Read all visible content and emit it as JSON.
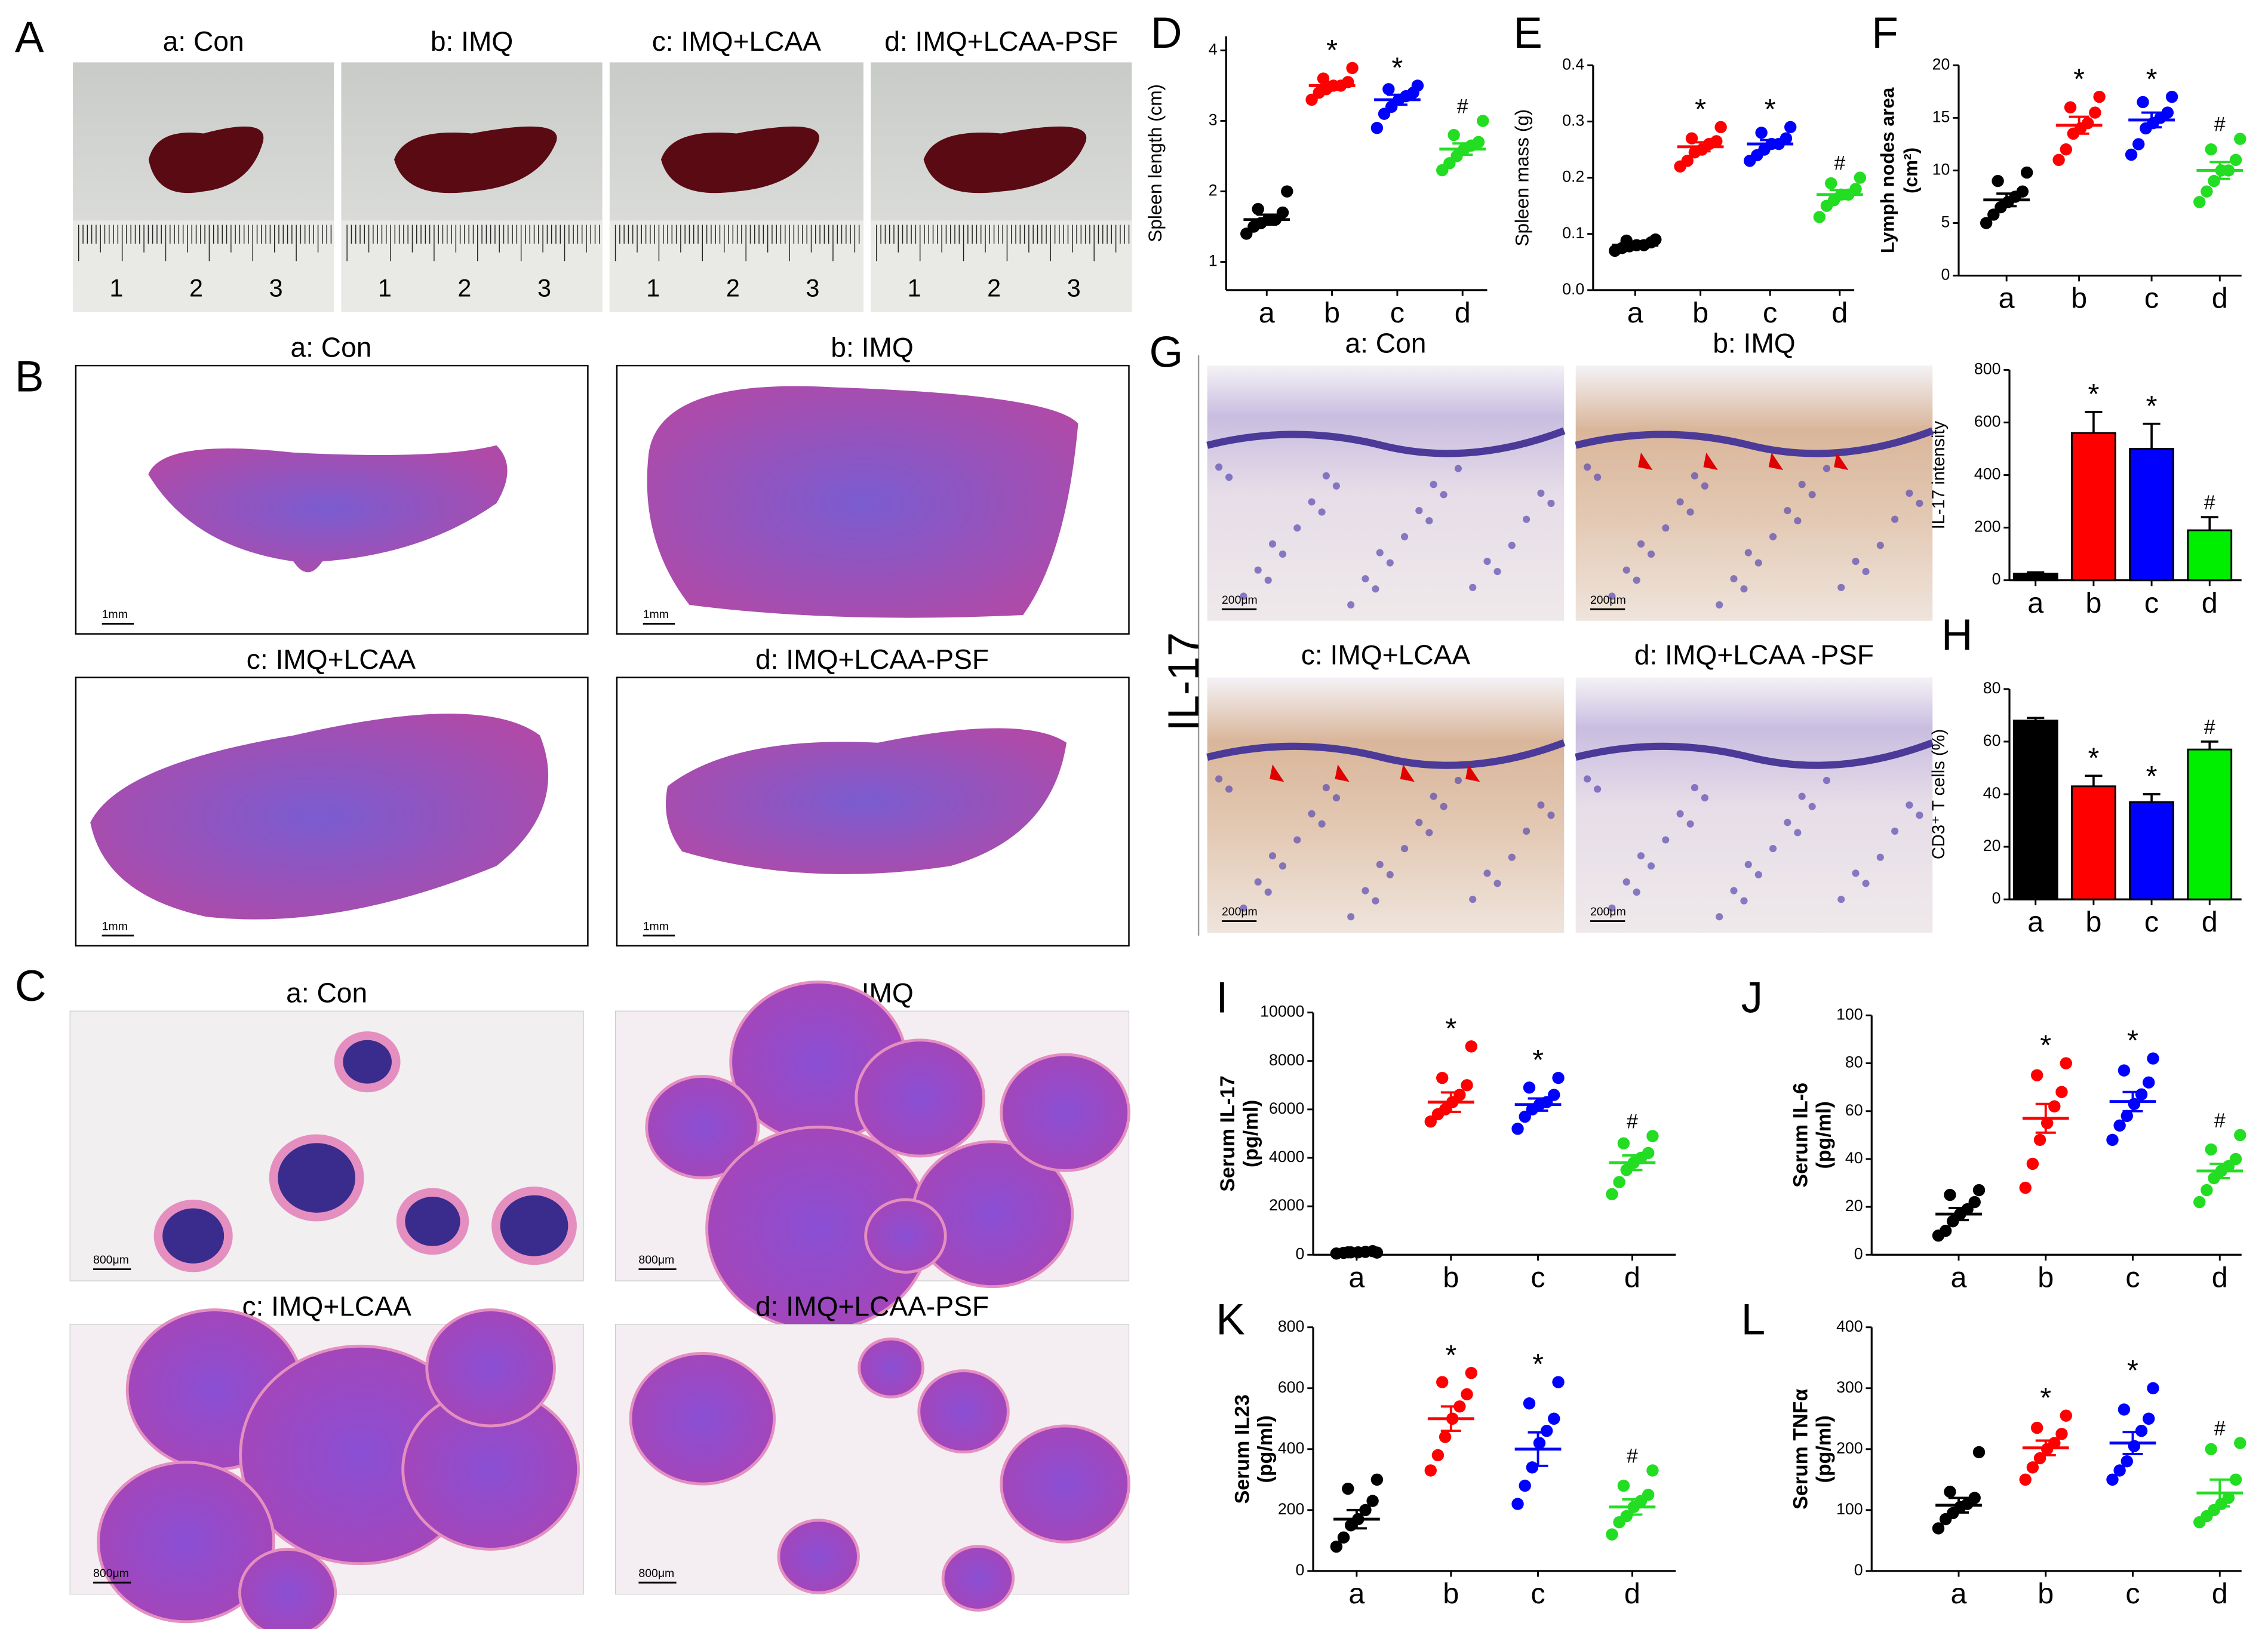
{
  "panels": {
    "A": {
      "label": "A",
      "titles": [
        "a: Con",
        "b: IMQ",
        "c: IMQ+LCAA",
        "d: IMQ+LCAA-PSF"
      ],
      "ruler_labels": [
        "1",
        "2",
        "3"
      ]
    },
    "B": {
      "label": "B",
      "titles": [
        "a: Con",
        "b: IMQ",
        "c: IMQ+LCAA",
        "d: IMQ+LCAA-PSF"
      ],
      "scale_bar": "1mm"
    },
    "C": {
      "label": "C",
      "titles": [
        "a: Con",
        "b: IMQ",
        "c: IMQ+LCAA",
        "d: IMQ+LCAA-PSF"
      ],
      "scale_bar": "800μm"
    },
    "G": {
      "label": "G",
      "stain": "IL-17",
      "titles": [
        "a: Con",
        "b: IMQ",
        "c: IMQ+LCAA",
        "d: IMQ+LCAA -PSF"
      ],
      "scale_bar": "200μm"
    }
  },
  "chart_data": [
    {
      "type": "dot",
      "label": "D",
      "ylabel": [
        "Spleen length (cm)"
      ],
      "categories": [
        "a",
        "b",
        "c",
        "d"
      ],
      "colors": [
        "#000000",
        "#ff0000",
        "#0000ff",
        "#22dd22"
      ],
      "points": [
        [
          1.4,
          1.5,
          1.55,
          1.6,
          1.6,
          1.7,
          1.75,
          2.0
        ],
        [
          3.3,
          3.4,
          3.45,
          3.5,
          3.5,
          3.55,
          3.6,
          3.75
        ],
        [
          2.9,
          3.1,
          3.2,
          3.3,
          3.35,
          3.4,
          3.45,
          3.5
        ],
        [
          2.3,
          2.4,
          2.5,
          2.6,
          2.65,
          2.7,
          2.8,
          3.0
        ]
      ],
      "means": [
        1.6,
        3.5,
        3.3,
        2.6
      ],
      "sems": [
        0.07,
        0.05,
        0.07,
        0.08
      ],
      "annotations": [
        null,
        "*",
        "*",
        "#"
      ],
      "ylim": [
        0.6,
        4.2
      ],
      "yticks": [
        1,
        2,
        3,
        4
      ]
    },
    {
      "type": "dot",
      "label": "E",
      "ylabel": [
        "Spleen mass (g)"
      ],
      "categories": [
        "a",
        "b",
        "c",
        "d"
      ],
      "colors": [
        "#000000",
        "#ff0000",
        "#0000ff",
        "#22dd22"
      ],
      "points": [
        [
          0.07,
          0.075,
          0.078,
          0.08,
          0.08,
          0.085,
          0.088,
          0.09
        ],
        [
          0.22,
          0.23,
          0.245,
          0.25,
          0.26,
          0.265,
          0.27,
          0.29
        ],
        [
          0.23,
          0.24,
          0.25,
          0.26,
          0.26,
          0.27,
          0.28,
          0.29
        ],
        [
          0.13,
          0.15,
          0.16,
          0.17,
          0.17,
          0.18,
          0.19,
          0.2
        ]
      ],
      "means": [
        0.08,
        0.255,
        0.26,
        0.17
      ],
      "sems": [
        0.003,
        0.008,
        0.007,
        0.008
      ],
      "annotations": [
        null,
        "*",
        "*",
        "#"
      ],
      "ylim": [
        0,
        0.4
      ],
      "yticks": [
        {
          "value": 0,
          "label": "0.0"
        },
        0.1,
        0.2,
        0.3,
        0.4
      ]
    },
    {
      "type": "dot",
      "label": "F",
      "ylabel": [
        "Lymph nodes area",
        "(cm²)"
      ],
      "categories": [
        "a",
        "b",
        "c",
        "d"
      ],
      "colors": [
        "#000000",
        "#ff0000",
        "#0000ff",
        "#22dd22"
      ],
      "points": [
        [
          5,
          5.8,
          6.5,
          7,
          7.5,
          8,
          9,
          9.8
        ],
        [
          11,
          12,
          13.5,
          14,
          14.5,
          15.5,
          16,
          17
        ],
        [
          11.5,
          12.5,
          14,
          14.5,
          15,
          15.5,
          16.5,
          17
        ],
        [
          7,
          8,
          9,
          10,
          10,
          11,
          12,
          13
        ]
      ],
      "means": [
        7.2,
        14.3,
        14.8,
        10
      ],
      "sems": [
        0.6,
        0.8,
        0.7,
        0.8
      ],
      "annotations": [
        null,
        "*",
        "*",
        "#"
      ],
      "ylim": [
        0,
        20
      ],
      "yticks": [
        0,
        5,
        10,
        15,
        20
      ]
    },
    {
      "type": "bar",
      "ylabel": [
        "IL-17 intensity"
      ],
      "categories": [
        "a",
        "b",
        "c",
        "d"
      ],
      "colors": [
        "#000000",
        "#ff0000",
        "#0000ff",
        "#00ee00"
      ],
      "values": [
        25,
        560,
        500,
        190
      ],
      "errors": [
        5,
        80,
        95,
        50
      ],
      "annotations": [
        null,
        "*",
        "*",
        "#"
      ],
      "ylim": [
        0,
        800
      ],
      "yticks": [
        0,
        200,
        400,
        600,
        800
      ]
    },
    {
      "type": "bar",
      "label": "H",
      "ylabel": [
        "CD3⁺ T cells (%)"
      ],
      "categories": [
        "a",
        "b",
        "c",
        "d"
      ],
      "colors": [
        "#000000",
        "#ff0000",
        "#0000ff",
        "#00ee00"
      ],
      "values": [
        68,
        43,
        37,
        57
      ],
      "errors": [
        1,
        4,
        3,
        3
      ],
      "annotations": [
        null,
        "*",
        "*",
        "#"
      ],
      "ylim": [
        0,
        80
      ],
      "yticks": [
        0,
        20,
        40,
        60,
        80
      ]
    },
    {
      "type": "dot",
      "label": "I",
      "ylabel": [
        "Serum IL-17",
        "(pg/ml)"
      ],
      "categories": [
        "a",
        "b",
        "c",
        "d"
      ],
      "colors": [
        "#000000",
        "#ff0000",
        "#0000ff",
        "#22dd22"
      ],
      "points": [
        [
          50,
          80,
          100,
          100,
          120,
          150,
          100,
          90
        ],
        [
          5500,
          5800,
          6000,
          6300,
          6600,
          7000,
          7300,
          8600
        ],
        [
          5200,
          5700,
          6000,
          6200,
          6300,
          6600,
          6900,
          7300
        ],
        [
          2500,
          3000,
          3500,
          3800,
          4000,
          4200,
          4600,
          4900
        ]
      ],
      "means": [
        100,
        6300,
        6200,
        3800
      ],
      "sems": [
        20,
        400,
        250,
        300
      ],
      "annotations": [
        null,
        "*",
        "*",
        "#"
      ],
      "ylim": [
        0,
        10000
      ],
      "yticks": [
        0,
        2000,
        4000,
        6000,
        8000,
        10000
      ]
    },
    {
      "type": "dot",
      "label": "J",
      "ylabel": [
        "Serum IL-6",
        "(pg/ml)"
      ],
      "categories": [
        "a",
        "b",
        "c",
        "d"
      ],
      "colors": [
        "#000000",
        "#ff0000",
        "#0000ff",
        "#22dd22"
      ],
      "points": [
        [
          8,
          10,
          14,
          17,
          19,
          22,
          25,
          27
        ],
        [
          28,
          38,
          48,
          55,
          62,
          68,
          75,
          80
        ],
        [
          48,
          54,
          58,
          63,
          67,
          72,
          77,
          82
        ],
        [
          22,
          27,
          32,
          35,
          37,
          40,
          44,
          50
        ]
      ],
      "means": [
        17,
        57,
        64,
        35
      ],
      "sems": [
        2.5,
        6,
        4,
        3
      ],
      "annotations": [
        null,
        "*",
        "*",
        "#"
      ],
      "ylim": [
        0,
        100
      ],
      "yticks": [
        0,
        20,
        40,
        60,
        80,
        100
      ]
    },
    {
      "type": "dot",
      "label": "K",
      "ylabel": [
        "Serum IL23",
        "(pg/ml)"
      ],
      "categories": [
        "a",
        "b",
        "c",
        "d"
      ],
      "colors": [
        "#000000",
        "#ff0000",
        "#0000ff",
        "#22dd22"
      ],
      "points": [
        [
          80,
          110,
          150,
          170,
          200,
          230,
          270,
          300
        ],
        [
          330,
          380,
          440,
          500,
          540,
          580,
          620,
          650
        ],
        [
          220,
          280,
          340,
          420,
          460,
          500,
          550,
          620
        ],
        [
          120,
          160,
          180,
          210,
          230,
          250,
          280,
          330
        ]
      ],
      "means": [
        170,
        500,
        400,
        210
      ],
      "sems": [
        30,
        40,
        55,
        25
      ],
      "annotations": [
        null,
        "*",
        "*",
        "#"
      ],
      "ylim": [
        0,
        800
      ],
      "yticks": [
        0,
        200,
        400,
        600,
        800
      ]
    },
    {
      "type": "dot",
      "label": "L",
      "ylabel": [
        "Serum TNFα",
        "(pg/ml)"
      ],
      "categories": [
        "a",
        "b",
        "c",
        "d"
      ],
      "colors": [
        "#000000",
        "#ff0000",
        "#0000ff",
        "#22dd22"
      ],
      "points": [
        [
          70,
          85,
          95,
          105,
          110,
          120,
          130,
          195
        ],
        [
          150,
          170,
          185,
          200,
          210,
          225,
          235,
          255
        ],
        [
          150,
          165,
          180,
          205,
          230,
          250,
          265,
          300
        ],
        [
          80,
          90,
          100,
          110,
          120,
          150,
          200,
          210
        ]
      ],
      "means": [
        108,
        202,
        210,
        128
      ],
      "sems": [
        12,
        12,
        18,
        22
      ],
      "annotations": [
        null,
        "*",
        "*",
        "#"
      ],
      "ylim": [
        0,
        400
      ],
      "yticks": [
        0,
        100,
        200,
        300,
        400
      ]
    }
  ]
}
